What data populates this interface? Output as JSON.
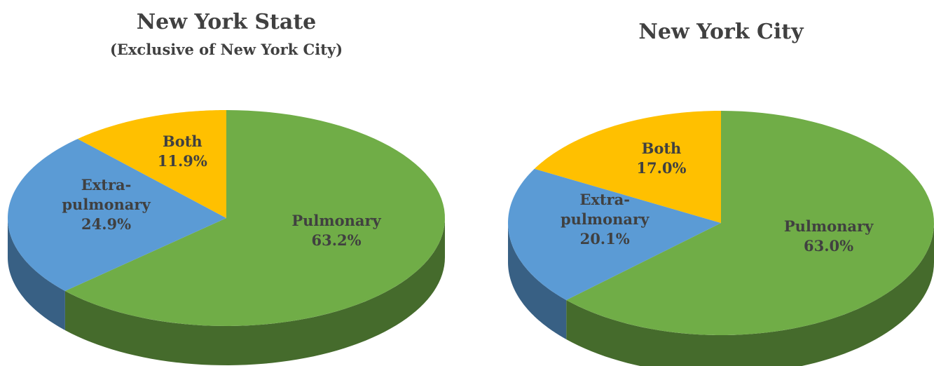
{
  "chart_data": [
    {
      "type": "pie",
      "title": "New York State",
      "subtitle": "(Exclusive of New York City)",
      "categories": [
        "Pulmonary",
        "Extra-pulmonary",
        "Both"
      ],
      "values": [
        63.2,
        24.9,
        11.9
      ],
      "value_labels": [
        "63.2%",
        "24.9%",
        "11.9%"
      ],
      "colors": [
        "#70ad47",
        "#5b9bd5",
        "#ffc000"
      ]
    },
    {
      "type": "pie",
      "title": "New York City",
      "categories": [
        "Pulmonary",
        "Extra-pulmonary",
        "Both"
      ],
      "values": [
        63.0,
        20.1,
        17.0
      ],
      "value_labels": [
        "63.0%",
        "20.1%",
        "17.0%"
      ],
      "colors": [
        "#70ad47",
        "#5b9bd5",
        "#ffc000"
      ]
    }
  ]
}
